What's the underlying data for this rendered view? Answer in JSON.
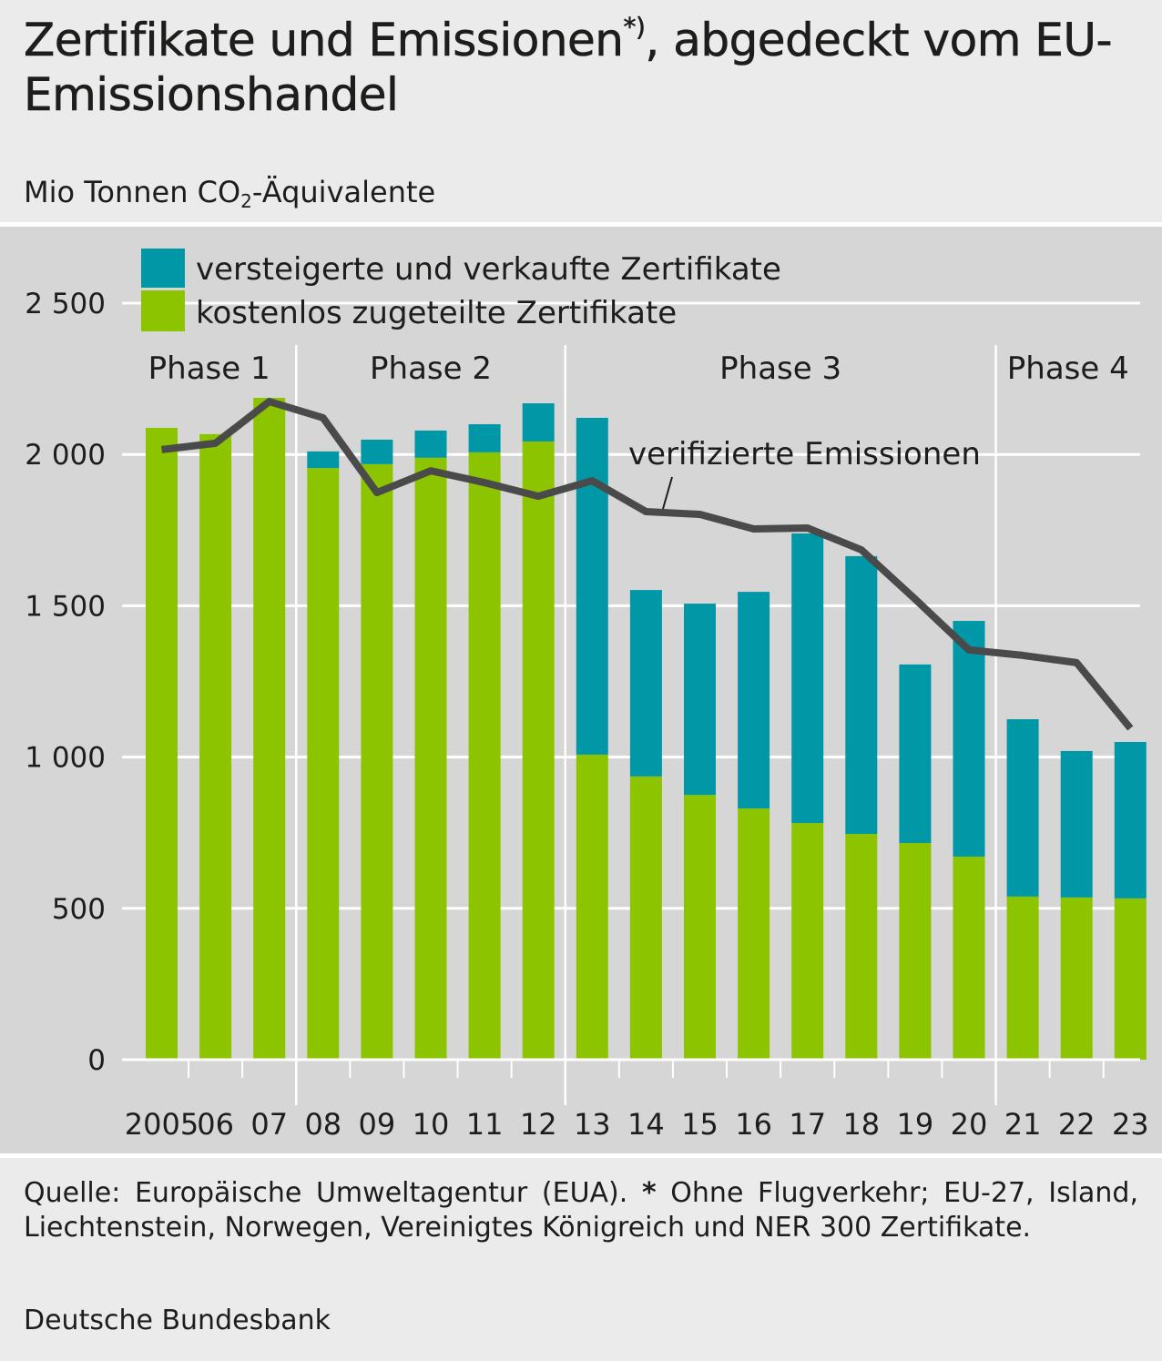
{
  "header": {
    "title_part1": "Zertifikate und Emissionen",
    "title_footnote_mark": "*)",
    "title_part2": ", abgedeckt vom EU-Emissionshandel",
    "unit_prefix": "Mio Tonnen CO",
    "unit_subscript": "2",
    "unit_suffix": "-Äquivalente"
  },
  "footer": {
    "source_text": "Quelle: Europäische Umweltagentur (EUA). ",
    "footnote_star": "*",
    "footnote_text": " Ohne Flugverkehr; EU-27, Island, Liechtenstein, Norwegen, Vereinigtes Königreich und NER 300 Zertifikate.",
    "publisher": "Deutsche Bundesbank"
  },
  "colors": {
    "auctioned": "#0097a7",
    "free": "#8dc400",
    "emissions_line": "#4a4a4a",
    "grid": "#ffffff",
    "plot_background": "#d6d6d6",
    "page_background": "#ebebeb"
  },
  "chart_data": {
    "type": "bar",
    "stacked": true,
    "title": "Zertifikate und Emissionen*), abgedeckt vom EU-Emissionshandel",
    "ylabel": "Mio Tonnen CO2-Äquivalente",
    "xlabel": "",
    "ylim": [
      0,
      2700
    ],
    "yticks": [
      0,
      500,
      1000,
      1500,
      2000,
      2500
    ],
    "ytick_labels": [
      "0",
      "500",
      "1 000",
      "1 500",
      "2 000",
      "2 500"
    ],
    "grid": true,
    "legend_position": "top-left",
    "categories": [
      "2005",
      "06",
      "07",
      "08",
      "09",
      "10",
      "11",
      "12",
      "13",
      "14",
      "15",
      "16",
      "17",
      "18",
      "19",
      "20",
      "21",
      "22",
      "23"
    ],
    "series": [
      {
        "name": "kostenlos zugeteilte Zertifikate",
        "kind": "bar",
        "values": [
          2088,
          2067,
          2187,
          1955,
          1968,
          1989,
          2007,
          2043,
          1008,
          936,
          875,
          830,
          782,
          746,
          716,
          671,
          539,
          536,
          533
        ]
      },
      {
        "name": "versteigerte und verkaufte Zertifikate",
        "kind": "bar",
        "values": [
          0,
          0,
          0,
          55,
          81,
          90,
          93,
          126,
          1113,
          616,
          632,
          716,
          957,
          918,
          590,
          779,
          586,
          484,
          517
        ]
      },
      {
        "name": "verifizierte Emissionen",
        "kind": "line",
        "values": [
          2016,
          2037,
          2175,
          2121,
          1874,
          1946,
          1907,
          1862,
          1913,
          1811,
          1802,
          1754,
          1757,
          1685,
          1522,
          1354,
          1336,
          1312,
          1095
        ]
      }
    ],
    "phases": [
      {
        "label": "Phase 1",
        "start": "2005",
        "end": "07"
      },
      {
        "label": "Phase 2",
        "start": "08",
        "end": "12"
      },
      {
        "label": "Phase 3",
        "start": "13",
        "end": "20"
      },
      {
        "label": "Phase 4",
        "start": "21",
        "end": "23"
      }
    ],
    "line_annotation": "verifizierte Emissionen"
  }
}
